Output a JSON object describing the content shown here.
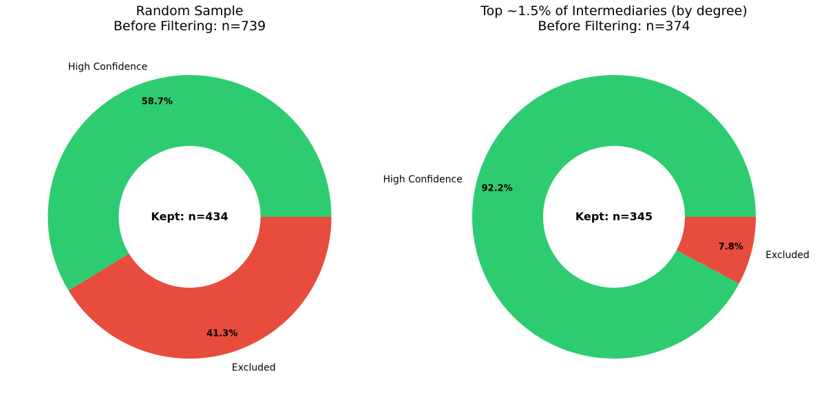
{
  "chart_data": [
    {
      "type": "pie",
      "title": "Random Sample",
      "subtitle": "Before Filtering: n=739",
      "center_label": "Kept: n=434",
      "slices": [
        {
          "label": "High Confidence",
          "value": 58.7,
          "pct_label": "58.7%",
          "color": "#2ecc71"
        },
        {
          "label": "Excluded",
          "value": 41.3,
          "pct_label": "41.3%",
          "color": "#e74c3c"
        }
      ]
    },
    {
      "type": "pie",
      "title": "Top ~1.5% of Intermediaries (by degree)",
      "subtitle": "Before Filtering: n=374",
      "center_label": "Kept: n=345",
      "slices": [
        {
          "label": "High Confidence",
          "value": 92.2,
          "pct_label": "92.2%",
          "color": "#2ecc71"
        },
        {
          "label": "Excluded",
          "value": 7.8,
          "pct_label": "7.8%",
          "color": "#e74c3c"
        }
      ]
    }
  ]
}
